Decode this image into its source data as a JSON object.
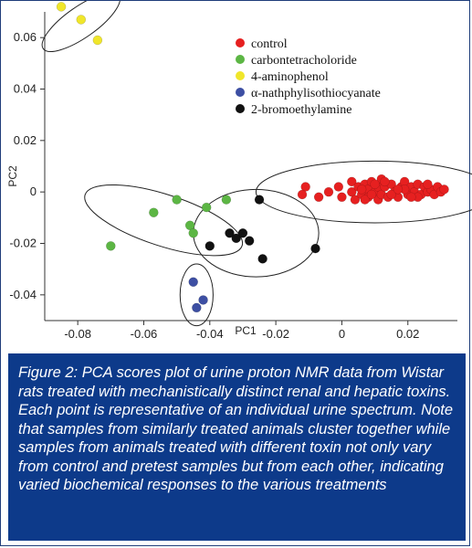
{
  "chart_data": {
    "type": "scatter",
    "xlabel": "PC1",
    "ylabel": "PC2",
    "xlim": [
      -0.09,
      0.035
    ],
    "ylim": [
      -0.05,
      0.07
    ],
    "x_ticks": [
      "-0.08",
      "-0.06",
      "-0.04",
      "-0.02",
      "0",
      "0.02"
    ],
    "y_ticks": [
      "0.06",
      "0.04",
      "0.02",
      "0",
      "-0.02",
      "-0.04"
    ],
    "x_tick_values": [
      -0.08,
      -0.06,
      -0.04,
      -0.02,
      0,
      0.02
    ],
    "y_tick_values": [
      0.06,
      0.04,
      0.02,
      0,
      -0.02,
      -0.04
    ],
    "grid": false,
    "legend_position": "top-right",
    "series": [
      {
        "name": "control",
        "color": "#e62020",
        "points": [
          [
            -0.011,
            0.002
          ],
          [
            -0.012,
            -0.001
          ],
          [
            -0.007,
            -0.002
          ],
          [
            -0.004,
            0.0
          ],
          [
            -0.001,
            0.002
          ],
          [
            0.0,
            -0.002
          ],
          [
            0.003,
            0.004
          ],
          [
            0.003,
            0.0
          ],
          [
            0.004,
            -0.003
          ],
          [
            0.005,
            0.002
          ],
          [
            0.006,
            -0.001
          ],
          [
            0.007,
            0.003
          ],
          [
            0.008,
            0.001
          ],
          [
            0.008,
            -0.002
          ],
          [
            0.009,
            0.004
          ],
          [
            0.01,
            0.0
          ],
          [
            0.011,
            0.002
          ],
          [
            0.011,
            -0.003
          ],
          [
            0.012,
            0.005
          ],
          [
            0.012,
            -0.001
          ],
          [
            0.013,
            0.002
          ],
          [
            0.014,
            -0.002
          ],
          [
            0.015,
            0.003
          ],
          [
            0.016,
            0.0
          ],
          [
            0.017,
            -0.002
          ],
          [
            0.018,
            0.002
          ],
          [
            0.019,
            0.004
          ],
          [
            0.02,
            -0.001
          ],
          [
            0.021,
            0.002
          ],
          [
            0.022,
            0.0
          ],
          [
            0.023,
            0.003
          ],
          [
            0.024,
            -0.001
          ],
          [
            0.025,
            0.002
          ],
          [
            0.026,
            0.0
          ],
          [
            0.027,
            0.001
          ],
          [
            0.028,
            -0.001
          ],
          [
            0.029,
            0.002
          ],
          [
            0.03,
            0.0
          ],
          [
            0.031,
            0.001
          ],
          [
            0.006,
            0.001
          ],
          [
            0.01,
            0.003
          ],
          [
            0.015,
            -0.001
          ],
          [
            0.019,
            0.001
          ],
          [
            0.023,
            -0.002
          ],
          [
            0.026,
            0.003
          ],
          [
            0.007,
            -0.003
          ],
          [
            0.017,
            0.001
          ],
          [
            0.021,
            -0.002
          ],
          [
            0.013,
            0.004
          ],
          [
            0.009,
            -0.001
          ]
        ]
      },
      {
        "name": "carbontetracholoride",
        "color": "#5cb644",
        "points": [
          [
            -0.07,
            -0.021
          ],
          [
            -0.057,
            -0.008
          ],
          [
            -0.05,
            -0.003
          ],
          [
            -0.046,
            -0.013
          ],
          [
            -0.045,
            -0.016
          ],
          [
            -0.041,
            -0.006
          ],
          [
            -0.035,
            -0.003
          ]
        ]
      },
      {
        "name": "4-aminophenol",
        "color": "#f0e62a",
        "points": [
          [
            -0.085,
            0.072
          ],
          [
            -0.079,
            0.067
          ],
          [
            -0.074,
            0.059
          ]
        ]
      },
      {
        "name": "α-nathphylisothiocyanate",
        "color": "#3d4fa3",
        "points": [
          [
            -0.045,
            -0.035
          ],
          [
            -0.042,
            -0.042
          ],
          [
            -0.044,
            -0.045
          ]
        ]
      },
      {
        "name": "2-bromoethylamine",
        "color": "#111111",
        "points": [
          [
            -0.04,
            -0.021
          ],
          [
            -0.034,
            -0.016
          ],
          [
            -0.032,
            -0.018
          ],
          [
            -0.03,
            -0.016
          ],
          [
            -0.028,
            -0.019
          ],
          [
            -0.025,
            -0.003
          ],
          [
            -0.024,
            -0.026
          ],
          [
            -0.008,
            -0.022
          ]
        ]
      }
    ],
    "cluster_ellipses": [
      {
        "cx": 0.01,
        "cy": 0.0,
        "rx": 0.036,
        "ry": 0.012,
        "angle": 0
      },
      {
        "cx": -0.054,
        "cy": -0.011,
        "rx": 0.025,
        "ry": 0.01,
        "angle": -18
      },
      {
        "cx": -0.026,
        "cy": -0.016,
        "rx": 0.019,
        "ry": 0.017,
        "angle": 0
      },
      {
        "cx": -0.044,
        "cy": -0.04,
        "rx": 0.005,
        "ry": 0.012,
        "angle": 0
      },
      {
        "cx": -0.079,
        "cy": 0.066,
        "rx": 0.014,
        "ry": 0.006,
        "angle": 35
      }
    ]
  },
  "caption": "Figure 2: PCA scores plot of urine proton NMR data from Wistar rats treated with mechanistically distinct renal and hepatic toxins. Each point is representative of an individual urine spectrum. Note that samples from similarly treated animals cluster together while samples from animals treated with different toxin not only vary from control and pretest samples but from each other, indicating varied biochemical responses to the various treatments"
}
